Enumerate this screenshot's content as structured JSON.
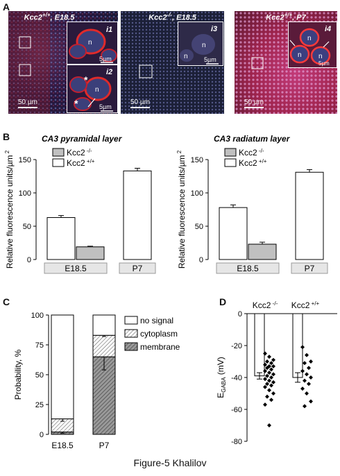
{
  "figure": {
    "caption": "Figure-5 Khalilov"
  },
  "panelA": {
    "label": "A",
    "images": [
      {
        "title_main": "Kcc2",
        "title_sup": "+/+",
        "title_rest": ", E18.5",
        "scale": "50 µm",
        "insets": [
          {
            "label": "i1",
            "nucleus": "n",
            "scale": "5µm"
          },
          {
            "label": "i2",
            "nucleus": "n",
            "scale": "5µm",
            "marker": "*"
          }
        ]
      },
      {
        "title_main": "Kcc2",
        "title_sup": "-/-",
        "title_rest": ", E18.5",
        "scale": "50 µm",
        "insets": [
          {
            "label": "i3",
            "nucleus": "n",
            "scale": "5µm"
          }
        ]
      },
      {
        "title_main": "Kcc2",
        "title_sup": "+/+",
        "title_rest": ", P7",
        "scale": "50 µm",
        "insets": [
          {
            "label": "i4",
            "nucleus": "n",
            "scale": "5µm"
          }
        ]
      }
    ]
  },
  "panelB": {
    "label": "B",
    "ylabel": "Relative fluorescence units/µm",
    "ylabel_sup": "2",
    "legend": [
      {
        "name": "Kcc2",
        "sup": "-/-",
        "color": "#c0c0c0"
      },
      {
        "name": "Kcc2",
        "sup": "+/+",
        "color": "#ffffff"
      }
    ],
    "yticks": [
      "0",
      "50",
      "100",
      "150"
    ],
    "groups": [
      "E18.5",
      "P7"
    ]
  },
  "panelC": {
    "label": "C",
    "ylabel": "Probability, %",
    "yticks": [
      "0",
      "25",
      "50",
      "75",
      "100"
    ],
    "legend": [
      "no signal",
      "cytoplasm",
      "membrane"
    ]
  },
  "panelD": {
    "label": "D",
    "ylabel": "E",
    "ylabel_sub": "GABA",
    "ylabel_unit": " (mV)",
    "yticks": [
      "0",
      "-20",
      "-40",
      "-60",
      "-80"
    ],
    "groups": [
      {
        "name": "Kcc2",
        "sup": "-/-"
      },
      {
        "name": "Kcc2",
        "sup": "+/+"
      }
    ]
  },
  "chart_data": [
    {
      "type": "bar",
      "title": "CA3 pyramidal layer",
      "ylabel": "Relative fluorescence units/µm2",
      "ylim": [
        0,
        150
      ],
      "categories": [
        "E18.5",
        "P7"
      ],
      "series": [
        {
          "name": "Kcc2 +/+",
          "values": [
            63,
            133
          ],
          "errors": [
            3,
            4
          ]
        },
        {
          "name": "Kcc2 -/-",
          "values": [
            19,
            null
          ],
          "errors": [
            1,
            null
          ]
        }
      ]
    },
    {
      "type": "bar",
      "title": "CA3 radiatum layer",
      "ylabel": "Relative fluorescence units/µm2",
      "ylim": [
        0,
        150
      ],
      "categories": [
        "E18.5",
        "P7"
      ],
      "series": [
        {
          "name": "Kcc2 +/+",
          "values": [
            78,
            131
          ],
          "errors": [
            4,
            4
          ]
        },
        {
          "name": "Kcc2 -/-",
          "values": [
            23,
            null
          ],
          "errors": [
            3,
            null
          ]
        }
      ]
    },
    {
      "type": "bar",
      "stacked": true,
      "ylabel": "Probability, %",
      "ylim": [
        0,
        100
      ],
      "categories": [
        "E18.5",
        "P7"
      ],
      "series": [
        {
          "name": "membrane",
          "values": [
            2,
            65
          ],
          "errors": [
            1,
            11
          ]
        },
        {
          "name": "cytoplasm",
          "values": [
            11,
            18
          ],
          "errors": [
            2,
            1
          ]
        },
        {
          "name": "no signal",
          "values": [
            87,
            17
          ]
        }
      ]
    },
    {
      "type": "scatter",
      "ylabel": "EGABA (mV)",
      "ylim": [
        -80,
        0
      ],
      "categories": [
        "Kcc2 -/-",
        "Kcc2 +/+"
      ],
      "bar_means": [
        -39,
        -40
      ],
      "bar_errors": [
        2,
        3
      ],
      "series": [
        {
          "name": "Kcc2 -/-",
          "values": [
            -25,
            -27,
            -29,
            -30,
            -31,
            -32,
            -33,
            -33,
            -34,
            -35,
            -36,
            -37,
            -38,
            -39,
            -40,
            -41,
            -42,
            -43,
            -44,
            -45,
            -46,
            -48,
            -50,
            -52,
            -54,
            -57,
            -70
          ]
        },
        {
          "name": "Kcc2 +/+",
          "values": [
            -21,
            -26,
            -30,
            -31,
            -34,
            -36,
            -38,
            -40,
            -42,
            -44,
            -47,
            -50,
            -55,
            -58
          ]
        }
      ]
    }
  ]
}
